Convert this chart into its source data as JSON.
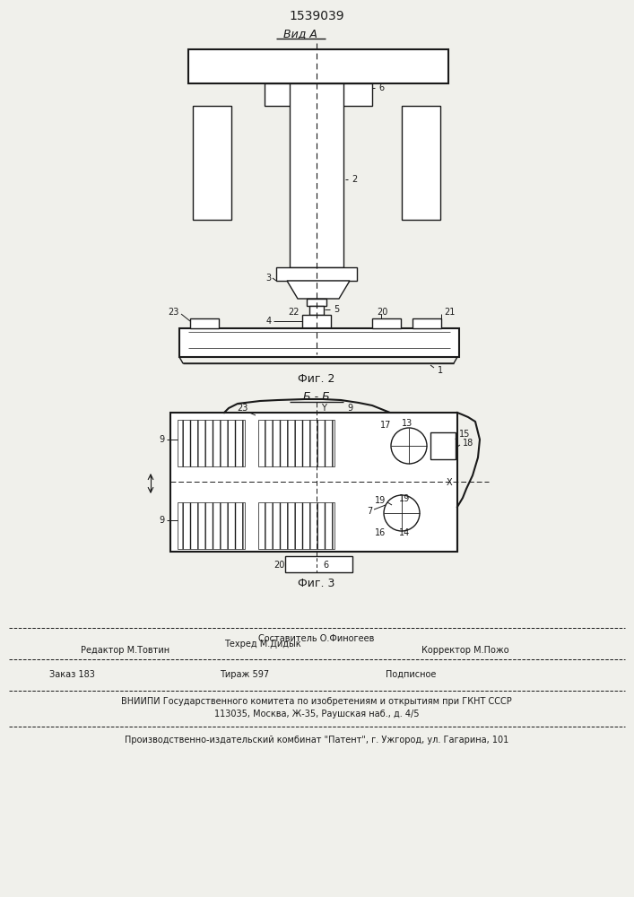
{
  "patent_number": "1539039",
  "background_color": "#f0f0eb",
  "line_color": "#1a1a1a",
  "fig2_label": "Вид А",
  "fig2_caption": "Фиг. 2",
  "fig3_label": "Б - Б",
  "fig3_caption": "Фиг. 3",
  "footer": {
    "line1": "Составитель О.Финогеев",
    "line2_left": "Редактор М.Товтин",
    "line2_mid": "Техред М.Дидык",
    "line2_right": "Корректор М.Пожо",
    "line3_a": "Заказ 183",
    "line3_b": "Тираж 597",
    "line3_c": "Подписное",
    "line4": "ВНИИПИ Государственного комитета по изобретениям и открытиям при ГКНТ СССР",
    "line5": "113035, Москва, Ж-35, Раушская наб., д. 4/5",
    "line6": "Производственно-издательский комбинат \"Патент\", г. Ужгород, ул. Гагарина, 101"
  }
}
